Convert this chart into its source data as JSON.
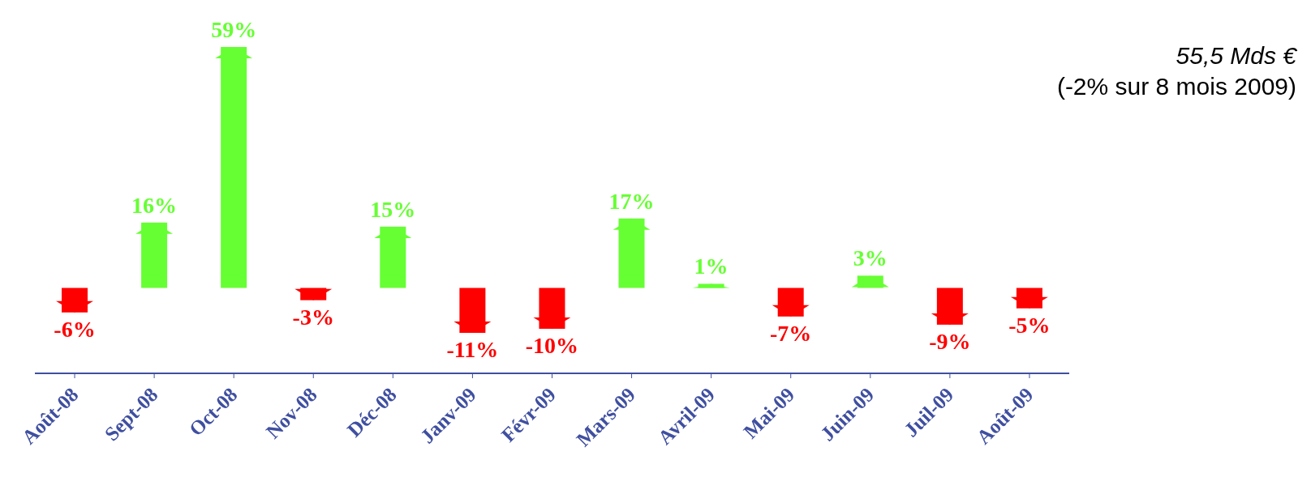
{
  "chart_data": {
    "type": "bar",
    "categories": [
      "Août-08",
      "Sept-08",
      "Oct-08",
      "Nov-08",
      "Déc-08",
      "Janv-09",
      "Févr-09",
      "Mars-09",
      "Avril-09",
      "Mai-09",
      "Juin-09",
      "Juil-09",
      "Août-09"
    ],
    "values": [
      -6,
      16,
      59,
      -3,
      15,
      -11,
      -10,
      17,
      1,
      -7,
      3,
      -9,
      -5
    ],
    "colors": [
      "#ff0000",
      "#66ff33",
      "#66ff33",
      "#ff0000",
      "#66ff33",
      "#ff0000",
      "#ff0000",
      "#66ff33",
      "#66ff33",
      "#ff0000",
      "#66ff33",
      "#ff0000",
      "#ff0000"
    ],
    "value_labels": [
      "-6%",
      "16%",
      "59%",
      "-3%",
      "15%",
      "-11%",
      "-10%",
      "17%",
      "1%",
      "-7%",
      "3%",
      "-9%",
      "-5%"
    ],
    "annotations": [
      "55,5 Mds €",
      "(-2% sur 8 mois 2009)"
    ],
    "grid": false,
    "legend": false
  }
}
